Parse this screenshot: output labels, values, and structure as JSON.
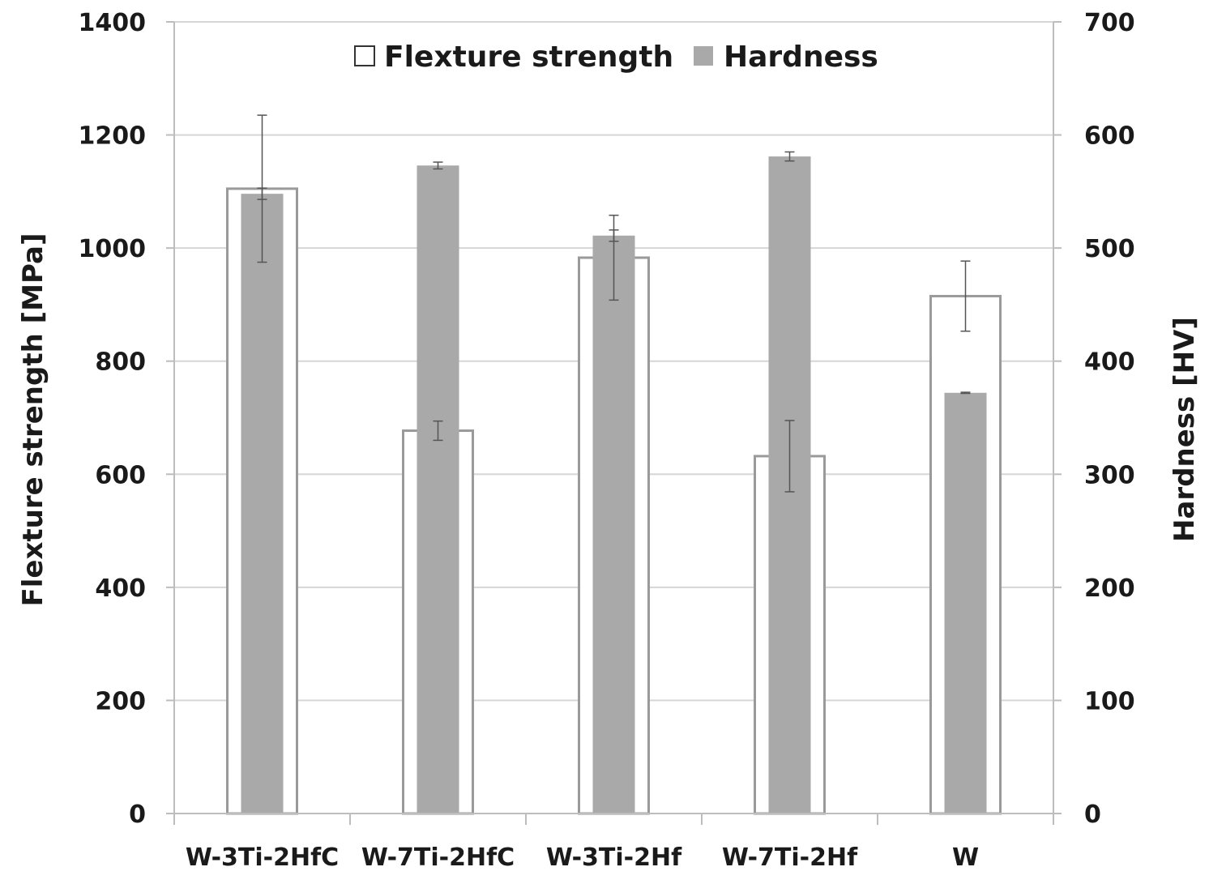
{
  "chart_data": {
    "type": "bar",
    "categories": [
      "W-3Ti-2HfC",
      "W-7Ti-2HfC",
      "W-3Ti-2Hf",
      "W-7Ti-2Hf",
      "W"
    ],
    "series": [
      {
        "name": "Flexture strength",
        "axis": "left",
        "values": [
          1105,
          677,
          983,
          632,
          915
        ],
        "errors": [
          130,
          17,
          75,
          63,
          62
        ],
        "fill": "#ffffff",
        "stroke": "#9a9a9a"
      },
      {
        "name": "Hardness",
        "axis": "right",
        "values": [
          548,
          573,
          511,
          581,
          372
        ],
        "errors": [
          5,
          3,
          5,
          4,
          0.5
        ],
        "fill": "#a9a9a9",
        "stroke": "#a9a9a9"
      }
    ],
    "ylabel_left": "Flexture strength [MPa]",
    "ylabel_right": "Hardness [HV]",
    "ylim_left": [
      0,
      1400
    ],
    "ylim_right": [
      0,
      700
    ],
    "yticks_left": [
      "0",
      "200",
      "400",
      "600",
      "800",
      "1000",
      "1200",
      "1400"
    ],
    "yticks_right": [
      "0",
      "100",
      "200",
      "300",
      "400",
      "500",
      "600",
      "700"
    ],
    "grid": true,
    "legend_position": "top-center",
    "colors": {
      "grid": "#d6d6d6",
      "axis": "#bdbdbd",
      "error_bar": "#555555"
    }
  }
}
